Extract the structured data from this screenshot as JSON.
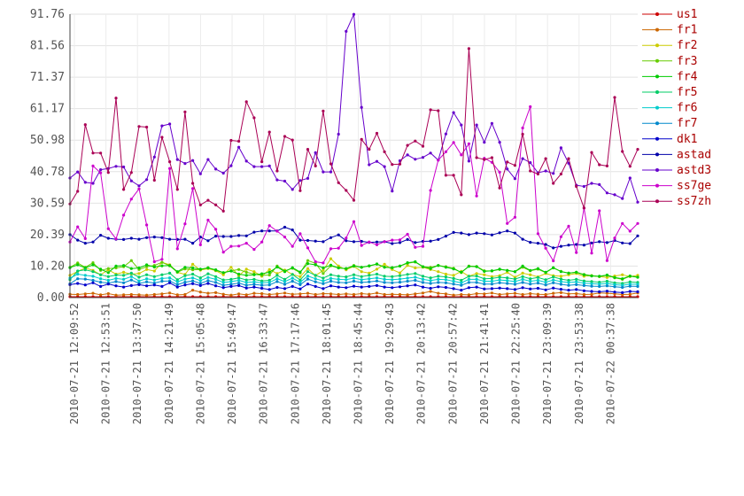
{
  "chart_data": {
    "type": "line",
    "title": "",
    "xlabel": "",
    "ylabel": "",
    "grid": true,
    "legend_position": "right",
    "ylim": [
      0,
      91.76
    ],
    "y_ticks": [
      "0.00",
      "10.20",
      "20.39",
      "30.59",
      "40.78",
      "50.98",
      "61.17",
      "71.37",
      "81.56",
      "91.76"
    ],
    "x_ticks": [
      "2010-07-21 12:09:52",
      "2010-07-21 12:53:51",
      "2010-07-21 13:37:50",
      "2010-07-21 14:21:49",
      "2010-07-21 15:05:48",
      "2010-07-21 15:49:47",
      "2010-07-21 16:33:47",
      "2010-07-21 17:17:46",
      "2010-07-21 18:01:45",
      "2010-07-21 18:45:44",
      "2010-07-21 19:29:43",
      "2010-07-21 20:13:42",
      "2010-07-21 20:57:42",
      "2010-07-21 21:41:41",
      "2010-07-21 22:25:40",
      "2010-07-21 23:09:39",
      "2010-07-21 23:53:38",
      "2010-07-22 00:37:38"
    ],
    "series": [
      {
        "name": "us1",
        "color": "#cc0000",
        "values": [
          0.3,
          0.3,
          0.3,
          0.3,
          0.3,
          0.3,
          0.3,
          0.3,
          0.3,
          0.3,
          0.3,
          0.3,
          0.3,
          0.3,
          0.3,
          0.3,
          0.3,
          0.3,
          0.3,
          0.3,
          0.3,
          0.3,
          0.3,
          0.3,
          0.3,
          0.3,
          0.3,
          0.3,
          0.3,
          0.3,
          0.3,
          0.3,
          0.3,
          0.3,
          0.3,
          0.3,
          0.3,
          0.3,
          0.3,
          0.3,
          0.3,
          0.3,
          0.3,
          0.3,
          0.3,
          0.3,
          0.3,
          0.3,
          0.3,
          0.3,
          0.3,
          0.3,
          0.3,
          0.3,
          0.3,
          0.3,
          0.3,
          0.3,
          0.3,
          0.3,
          0.3,
          0.3,
          0.3,
          0.3,
          0.3,
          0.3,
          0.3,
          0.3,
          0.3,
          0.3,
          0.3,
          0.3,
          0.3,
          0.3,
          0.3
        ]
      },
      {
        "name": "fr1",
        "color": "#cc6600",
        "values": [
          1.1,
          1.0,
          1.2,
          1.4,
          0.9,
          1.3,
          0.8,
          0.9,
          1.0,
          0.9,
          0.8,
          1.0,
          1.2,
          1.5,
          0.9,
          1.0,
          2.4,
          1.8,
          1.4,
          1.6,
          1.1,
          0.8,
          1.2,
          0.9,
          1.4,
          1.3,
          1.0,
          1.2,
          1.5,
          1.1,
          1.2,
          1.4,
          1.0,
          1.3,
          1.2,
          1.0,
          1.2,
          1.0,
          1.3,
          1.1,
          1.5,
          1.0,
          1.1,
          1.0,
          0.9,
          1.2,
          1.5,
          2.0,
          1.4,
          1.2,
          0.8,
          1.0,
          0.9,
          1.3,
          1.2,
          1.5,
          1.0,
          1.2,
          1.4,
          1.0,
          1.3,
          1.1,
          1.0,
          1.4,
          1.6,
          1.2,
          1.3,
          1.0,
          1.1,
          1.5,
          1.4,
          1.2,
          1.0,
          1.1,
          1.5
        ]
      },
      {
        "name": "fr2",
        "color": "#cccc00",
        "values": [
          7.2,
          8.5,
          9.6,
          8.8,
          7.4,
          9.0,
          7.6,
          8.2,
          7.6,
          7.8,
          9.1,
          8.6,
          11.4,
          10.6,
          8.2,
          7.5,
          10.8,
          8.9,
          9.4,
          8.7,
          7.4,
          9.8,
          7.1,
          9.2,
          8.4,
          6.9,
          9.1,
          7.8,
          8.9,
          7.5,
          6.8,
          9.4,
          7.1,
          8.8,
          12.6,
          10.2,
          9.0,
          10.1,
          8.4,
          7.9,
          9.2,
          10.8,
          9.1,
          8.0,
          10.4,
          9.6,
          9.8,
          9.1,
          8.4,
          7.6,
          7.2,
          8.5,
          6.9,
          7.8,
          7.4,
          6.8,
          7.1,
          8.2,
          6.6,
          7.9,
          7.4,
          6.7,
          7.8,
          7.1,
          6.9,
          7.4,
          7.8,
          6.9,
          7.1,
          6.8,
          6.5,
          7.0,
          7.4,
          6.8,
          7.2
        ]
      },
      {
        "name": "fr3",
        "color": "#66cc00",
        "values": [
          9.8,
          11.2,
          9.8,
          11.3,
          8.8,
          9.4,
          9.6,
          10.0,
          12.0,
          9.1,
          10.0,
          10.4,
          11.4,
          10.3,
          8.2,
          9.3,
          9.0,
          9.1,
          9.7,
          8.8,
          8.1,
          8.7,
          9.1,
          8.2,
          7.6,
          7.2,
          7.3,
          10.2,
          8.7,
          9.5,
          8.0,
          12.0,
          11.1,
          7.8,
          10.3,
          9.6,
          9.4,
          10.4,
          9.8,
          10.2,
          10.8,
          9.9,
          9.7,
          10.2,
          11.1,
          11.5,
          10.0,
          9.8,
          10.4,
          10.0,
          9.5,
          8.1,
          10.2,
          10.1,
          8.7,
          8.6,
          9.1,
          8.8,
          8.4,
          9.8,
          8.7,
          9.2,
          8.1,
          9.6,
          8.5,
          7.9,
          8.2,
          7.5,
          7.1,
          6.8,
          7.2,
          6.4,
          5.9,
          6.9,
          6.6
        ]
      },
      {
        "name": "fr4",
        "color": "#00cc00",
        "values": [
          9.7,
          10.6,
          9.6,
          10.6,
          9.2,
          8.1,
          10.2,
          10.4,
          9.4,
          9.6,
          10.6,
          9.9,
          10.3,
          10.4,
          8.4,
          9.8,
          9.6,
          9.2,
          9.6,
          9.0,
          8.1,
          8.6,
          7.6,
          7.2,
          7.4,
          7.7,
          8.2,
          9.9,
          8.4,
          9.7,
          8.3,
          11.0,
          10.6,
          9.6,
          10.5,
          9.6,
          9.4,
          10.2,
          9.8,
          10.3,
          10.9,
          9.8,
          9.7,
          10.2,
          11.3,
          11.6,
          10.0,
          9.4,
          10.4,
          9.8,
          9.3,
          8.2,
          10.1,
          10.0,
          8.5,
          8.7,
          9.2,
          8.8,
          8.4,
          10.2,
          8.8,
          9.4,
          8.2,
          9.7,
          8.4,
          7.9,
          8.2,
          7.4,
          7.0,
          6.9,
          7.3,
          6.5,
          6.1,
          7.0,
          6.6
        ]
      },
      {
        "name": "fr5",
        "color": "#00cc66",
        "values": [
          5.8,
          8.6,
          9.0,
          8.4,
          7.4,
          6.8,
          7.3,
          7.2,
          7.9,
          6.6,
          7.4,
          6.8,
          7.4,
          7.9,
          5.8,
          7.1,
          7.6,
          6.4,
          7.7,
          6.8,
          5.7,
          5.9,
          6.4,
          5.7,
          5.9,
          5.4,
          5.6,
          7.2,
          5.9,
          7.5,
          5.7,
          8.4,
          7.2,
          6.3,
          7.4,
          6.9,
          6.7,
          7.4,
          6.8,
          7.2,
          7.6,
          6.9,
          6.8,
          7.1,
          7.5,
          7.8,
          6.9,
          6.4,
          6.9,
          6.7,
          6.2,
          5.6,
          6.9,
          7.0,
          6.1,
          6.2,
          6.6,
          6.4,
          6.0,
          6.8,
          6.1,
          6.5,
          5.8,
          6.7,
          6.0,
          5.6,
          5.9,
          5.4,
          5.2,
          5.0,
          5.3,
          4.8,
          4.6,
          5.1,
          4.9
        ]
      },
      {
        "name": "fr6",
        "color": "#00cccc",
        "values": [
          6.3,
          7.6,
          7.2,
          6.9,
          6.1,
          5.6,
          6.2,
          5.9,
          6.8,
          5.4,
          6.1,
          5.7,
          6.2,
          6.4,
          5.1,
          6.0,
          6.4,
          5.5,
          6.5,
          5.9,
          4.9,
          5.2,
          5.6,
          4.9,
          5.1,
          4.8,
          4.9,
          6.1,
          5.2,
          6.3,
          5.0,
          7.0,
          6.1,
          5.4,
          6.2,
          5.9,
          5.8,
          6.3,
          5.8,
          6.1,
          6.4,
          5.9,
          5.8,
          6.0,
          6.3,
          6.6,
          5.9,
          5.5,
          5.9,
          5.8,
          5.3,
          4.8,
          5.9,
          5.9,
          5.3,
          5.3,
          5.7,
          5.5,
          5.2,
          5.9,
          5.3,
          5.6,
          5.0,
          5.7,
          5.2,
          4.9,
          5.1,
          4.7,
          4.5,
          4.4,
          4.6,
          4.2,
          4.0,
          4.4,
          4.3
        ]
      },
      {
        "name": "fr7",
        "color": "#0088cc",
        "values": [
          4.5,
          6.1,
          6.0,
          5.6,
          5.0,
          4.7,
          5.2,
          4.8,
          5.7,
          4.6,
          5.1,
          4.7,
          5.3,
          5.4,
          4.2,
          5.0,
          5.4,
          4.6,
          5.5,
          4.9,
          4.0,
          4.3,
          4.7,
          4.0,
          4.3,
          4.0,
          4.1,
          5.2,
          4.3,
          5.3,
          4.2,
          6.0,
          5.1,
          4.5,
          5.3,
          4.9,
          4.8,
          5.3,
          4.9,
          5.1,
          5.4,
          4.9,
          4.8,
          5.0,
          5.3,
          5.6,
          4.9,
          4.6,
          4.9,
          4.8,
          4.4,
          4.0,
          4.9,
          4.9,
          4.4,
          4.4,
          4.8,
          4.6,
          4.3,
          4.9,
          4.4,
          4.7,
          4.1,
          4.8,
          4.3,
          4.0,
          4.2,
          3.9,
          3.7,
          3.6,
          3.8,
          3.5,
          3.3,
          3.7,
          3.6
        ]
      },
      {
        "name": "dk1",
        "color": "#0000cc",
        "values": [
          4.2,
          4.6,
          4.1,
          4.8,
          3.6,
          4.4,
          3.8,
          3.4,
          3.9,
          4.2,
          3.8,
          4.1,
          3.6,
          4.8,
          3.4,
          4.1,
          4.5,
          3.9,
          4.6,
          3.8,
          3.2,
          3.6,
          3.9,
          3.1,
          3.4,
          3.0,
          2.6,
          3.3,
          2.9,
          3.6,
          2.8,
          4.4,
          3.6,
          2.9,
          3.8,
          3.4,
          3.2,
          3.7,
          3.4,
          3.6,
          3.9,
          3.4,
          3.2,
          3.5,
          3.8,
          4.1,
          3.4,
          3.0,
          3.5,
          3.3,
          2.9,
          2.4,
          3.2,
          3.4,
          2.8,
          2.9,
          3.1,
          2.9,
          2.6,
          3.2,
          2.8,
          3.0,
          2.5,
          3.1,
          2.7,
          2.4,
          2.6,
          2.2,
          2.0,
          1.9,
          2.1,
          1.8,
          1.6,
          2.0,
          1.9
        ]
      },
      {
        "name": "astad",
        "color": "#0000aa",
        "values": [
          20.4,
          18.6,
          17.6,
          18.0,
          20.2,
          19.2,
          18.9,
          18.8,
          19.2,
          18.9,
          19.4,
          19.6,
          19.4,
          18.9,
          18.8,
          18.9,
          17.6,
          19.6,
          18.4,
          19.9,
          19.8,
          19.8,
          20.1,
          20.0,
          21.2,
          21.6,
          21.6,
          21.6,
          22.8,
          21.9,
          18.6,
          18.5,
          18.3,
          18.1,
          19.4,
          20.3,
          18.4,
          18.1,
          18.2,
          17.9,
          18.0,
          18.1,
          17.5,
          17.8,
          18.8,
          17.8,
          18.2,
          18.3,
          18.8,
          19.9,
          21.1,
          20.9,
          20.4,
          20.9,
          20.7,
          20.3,
          21.0,
          21.6,
          20.9,
          18.9,
          17.9,
          17.6,
          17.2,
          16.1,
          16.6,
          17.0,
          17.2,
          17.0,
          17.7,
          18.1,
          17.8,
          18.5,
          17.7,
          17.5,
          20.0
        ]
      },
      {
        "name": "astd3",
        "color": "#6600cc",
        "values": [
          38.7,
          40.7,
          37.3,
          37.0,
          41.4,
          41.8,
          42.5,
          42.3,
          37.8,
          36.2,
          38.2,
          45.5,
          55.6,
          56.2,
          44.7,
          43.4,
          44.4,
          40.1,
          44.7,
          41.6,
          40.3,
          42.7,
          48.7,
          44.2,
          42.4,
          42.4,
          42.6,
          38.1,
          37.7,
          35.0,
          37.9,
          38.6,
          46.9,
          40.7,
          40.7,
          52.9,
          86.2,
          91.7,
          61.6,
          43.0,
          44.1,
          42.4,
          34.5,
          44.3,
          46.2,
          44.8,
          45.4,
          46.8,
          44.5,
          53.0,
          59.9,
          55.9,
          44.2,
          55.9,
          50.3,
          56.4,
          50.3,
          41.6,
          38.5,
          45.0,
          43.7,
          40.4,
          41.0,
          40.2,
          48.5,
          43.5,
          36.4,
          36.0,
          37.0,
          36.6,
          33.9,
          33.3,
          32.1,
          38.7,
          30.9
        ]
      },
      {
        "name": "ss7ge",
        "color": "#cc00cc",
        "values": [
          18.0,
          22.9,
          19.1,
          42.6,
          40.4,
          22.3,
          19.0,
          26.7,
          31.9,
          35.2,
          23.5,
          11.6,
          12.4,
          41.8,
          15.8,
          23.9,
          35.3,
          17.1,
          25.1,
          22.1,
          14.7,
          16.6,
          16.7,
          17.6,
          15.6,
          18.0,
          23.3,
          21.5,
          19.6,
          16.6,
          20.7,
          16.1,
          11.6,
          11.2,
          15.8,
          16.0,
          19.3,
          24.6,
          16.9,
          18.0,
          17.1,
          18.1,
          18.6,
          18.7,
          20.5,
          16.3,
          16.6,
          34.7,
          44.5,
          47.2,
          50.2,
          46.2,
          49.8,
          32.9,
          45.1,
          43.8,
          40.6,
          24.0,
          26.0,
          54.9,
          61.8,
          20.7,
          16.0,
          11.9,
          19.7,
          23.1,
          14.6,
          29.0,
          14.4,
          28.1,
          12.0,
          19.3,
          24.0,
          21.5,
          24.0
        ]
      },
      {
        "name": "ss7zh",
        "color": "#aa0055",
        "values": [
          30.3,
          34.4,
          56.0,
          46.8,
          46.8,
          40.5,
          64.6,
          35.0,
          40.5,
          55.4,
          55.2,
          38.0,
          51.9,
          44.0,
          35.0,
          60.1,
          37.0,
          30.0,
          31.5,
          30.0,
          28.0,
          50.9,
          50.6,
          63.4,
          58.2,
          44.0,
          53.6,
          41.0,
          52.2,
          51.0,
          34.6,
          48.0,
          42.6,
          60.4,
          43.3,
          37.2,
          34.7,
          31.5,
          51.2,
          48.0,
          53.2,
          47.2,
          43.1,
          43.2,
          49.3,
          50.7,
          49.0,
          60.8,
          60.5,
          39.6,
          39.6,
          33.3,
          80.6,
          45.3,
          44.7,
          45.3,
          35.5,
          43.9,
          42.8,
          52.9,
          41.0,
          40.0,
          45.0,
          37.0,
          40.0,
          45.0,
          36.0,
          29.0,
          47.0,
          43.0,
          42.6,
          64.8,
          47.3,
          42.5,
          48.0
        ]
      }
    ]
  }
}
